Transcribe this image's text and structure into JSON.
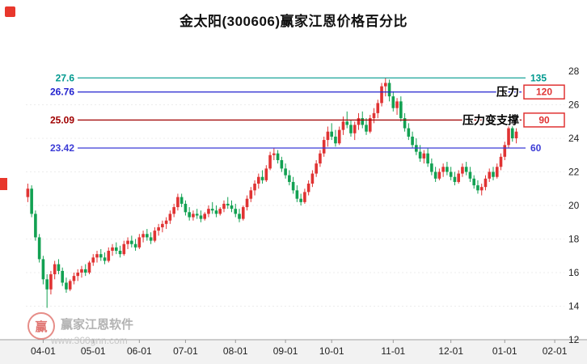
{
  "title": "金太阳(300606)赢家江恩价格百分比",
  "watermark": {
    "logo_text": "赢",
    "name": "赢家江恩软件",
    "url": "www.360gnn.com"
  },
  "chart_data": {
    "type": "candlestick",
    "title": "金太阳(300606)赢家江恩价格百分比",
    "ylim": [
      12,
      28
    ],
    "y_ticks": [
      28,
      26,
      24,
      22,
      20,
      18,
      16,
      14,
      12
    ],
    "grid_values": [
      14,
      16,
      18,
      20,
      22,
      24,
      26
    ],
    "total_slots": 140,
    "up_color": "#e03333",
    "down_color": "#12a152",
    "box_color": "#e03333",
    "axis_color": "#999999",
    "x_ticks": [
      {
        "label": "04-01",
        "i": 4
      },
      {
        "label": "05-01",
        "i": 17
      },
      {
        "label": "06-01",
        "i": 29
      },
      {
        "label": "07-01",
        "i": 41
      },
      {
        "label": "08-01",
        "i": 54
      },
      {
        "label": "09-01",
        "i": 67
      },
      {
        "label": "10-01",
        "i": 79
      },
      {
        "label": "11-01",
        "i": 95
      },
      {
        "label": "12-01",
        "i": 110
      },
      {
        "label": "01-01",
        "i": 124
      },
      {
        "label": "02-01",
        "i": 137
      }
    ],
    "levels": [
      {
        "value": 27.6,
        "left_label": "27.6",
        "right_label": "135",
        "color": "#00998f",
        "right_style": "text"
      },
      {
        "value": 26.76,
        "left_label": "26.76",
        "right_label": "120",
        "color": "#2323cf",
        "right_style": "box",
        "annotation": "压力"
      },
      {
        "value": 25.09,
        "left_label": "25.09",
        "right_label": "90",
        "color": "#a00000",
        "right_style": "box",
        "annotation": "压力变支撑"
      },
      {
        "value": 23.42,
        "left_label": "23.42",
        "right_label": "60",
        "color": "#3b3bd6",
        "right_style": "text"
      }
    ],
    "candles": [
      [
        20.5,
        21.3,
        20.2,
        21.0
      ],
      [
        21.0,
        21.2,
        19.3,
        19.5
      ],
      [
        19.5,
        19.7,
        17.9,
        18.1
      ],
      [
        18.1,
        18.3,
        16.6,
        16.8
      ],
      [
        16.8,
        17.0,
        15.3,
        15.6
      ],
      [
        15.6,
        15.9,
        13.9,
        15.0
      ],
      [
        15.0,
        16.1,
        14.7,
        15.9
      ],
      [
        15.9,
        16.7,
        15.6,
        16.5
      ],
      [
        16.5,
        16.8,
        15.9,
        16.1
      ],
      [
        16.1,
        16.3,
        15.2,
        15.4
      ],
      [
        15.4,
        15.7,
        14.8,
        15.0
      ],
      [
        15.0,
        15.6,
        14.9,
        15.5
      ],
      [
        15.5,
        16.0,
        15.3,
        15.8
      ],
      [
        15.8,
        16.2,
        15.5,
        16.0
      ],
      [
        16.0,
        16.4,
        15.7,
        16.2
      ],
      [
        16.2,
        16.5,
        15.8,
        16.0
      ],
      [
        16.0,
        16.7,
        15.9,
        16.6
      ],
      [
        16.6,
        17.1,
        16.4,
        16.9
      ],
      [
        16.9,
        17.3,
        16.6,
        17.1
      ],
      [
        17.1,
        17.4,
        16.7,
        16.9
      ],
      [
        16.9,
        17.2,
        16.5,
        16.7
      ],
      [
        16.7,
        17.5,
        16.6,
        17.3
      ],
      [
        17.3,
        17.7,
        17.0,
        17.5
      ],
      [
        17.5,
        17.8,
        17.1,
        17.3
      ],
      [
        17.3,
        17.6,
        16.9,
        17.1
      ],
      [
        17.1,
        17.9,
        17.0,
        17.7
      ],
      [
        17.7,
        18.1,
        17.4,
        17.9
      ],
      [
        17.9,
        18.2,
        17.5,
        17.7
      ],
      [
        17.7,
        18.0,
        17.3,
        17.5
      ],
      [
        17.5,
        18.3,
        17.4,
        18.1
      ],
      [
        18.1,
        18.5,
        17.8,
        18.3
      ],
      [
        18.3,
        18.6,
        17.9,
        18.1
      ],
      [
        18.1,
        18.4,
        17.7,
        17.9
      ],
      [
        17.9,
        18.7,
        17.8,
        18.5
      ],
      [
        18.5,
        18.9,
        18.2,
        18.7
      ],
      [
        18.7,
        19.1,
        18.4,
        18.9
      ],
      [
        18.9,
        19.3,
        18.6,
        19.1
      ],
      [
        19.1,
        19.7,
        18.9,
        19.5
      ],
      [
        19.5,
        20.1,
        19.3,
        19.9
      ],
      [
        19.9,
        20.7,
        19.7,
        20.5
      ],
      [
        20.5,
        20.7,
        19.9,
        20.1
      ],
      [
        20.1,
        20.3,
        19.4,
        19.6
      ],
      [
        19.6,
        19.9,
        19.1,
        19.3
      ],
      [
        19.3,
        19.7,
        19.1,
        19.5
      ],
      [
        19.5,
        19.8,
        19.2,
        19.4
      ],
      [
        19.4,
        19.7,
        19.0,
        19.2
      ],
      [
        19.2,
        19.6,
        19.1,
        19.5
      ],
      [
        19.5,
        20.0,
        19.3,
        19.8
      ],
      [
        19.8,
        20.2,
        19.5,
        19.7
      ],
      [
        19.7,
        20.0,
        19.3,
        19.5
      ],
      [
        19.5,
        19.9,
        19.4,
        19.8
      ],
      [
        19.8,
        20.3,
        19.6,
        20.1
      ],
      [
        20.1,
        20.5,
        19.8,
        20.0
      ],
      [
        20.0,
        20.3,
        19.6,
        19.8
      ],
      [
        19.8,
        20.1,
        19.3,
        19.5
      ],
      [
        19.5,
        19.8,
        19.0,
        19.2
      ],
      [
        19.2,
        20.0,
        19.1,
        19.9
      ],
      [
        19.9,
        20.6,
        19.7,
        20.4
      ],
      [
        20.4,
        21.1,
        20.2,
        20.9
      ],
      [
        20.9,
        21.5,
        20.6,
        21.3
      ],
      [
        21.3,
        21.9,
        21.0,
        21.7
      ],
      [
        21.7,
        22.1,
        21.3,
        21.5
      ],
      [
        21.5,
        22.4,
        21.4,
        22.2
      ],
      [
        22.2,
        23.2,
        22.1,
        23.0
      ],
      [
        23.0,
        23.4,
        22.7,
        23.1
      ],
      [
        23.1,
        23.3,
        22.5,
        22.7
      ],
      [
        22.7,
        22.9,
        22.0,
        22.2
      ],
      [
        22.2,
        22.5,
        21.6,
        21.8
      ],
      [
        21.8,
        22.1,
        21.2,
        21.4
      ],
      [
        21.4,
        21.7,
        20.7,
        20.9
      ],
      [
        20.9,
        21.2,
        20.2,
        20.4
      ],
      [
        20.4,
        20.7,
        20.0,
        20.2
      ],
      [
        20.2,
        21.0,
        20.1,
        20.8
      ],
      [
        20.8,
        21.5,
        20.6,
        21.3
      ],
      [
        21.3,
        22.1,
        21.1,
        21.9
      ],
      [
        21.9,
        22.7,
        21.7,
        22.5
      ],
      [
        22.5,
        23.3,
        22.3,
        23.1
      ],
      [
        23.1,
        24.1,
        22.9,
        23.9
      ],
      [
        23.9,
        24.7,
        23.5,
        24.4
      ],
      [
        24.4,
        24.9,
        23.9,
        24.1
      ],
      [
        24.1,
        24.5,
        23.5,
        23.7
      ],
      [
        23.7,
        24.7,
        23.6,
        24.5
      ],
      [
        24.5,
        25.3,
        24.2,
        25.0
      ],
      [
        25.0,
        25.6,
        24.6,
        24.8
      ],
      [
        24.8,
        25.1,
        24.1,
        24.3
      ],
      [
        24.3,
        25.0,
        23.9,
        24.8
      ],
      [
        24.8,
        25.5,
        24.5,
        25.2
      ],
      [
        25.2,
        25.6,
        24.6,
        24.8
      ],
      [
        24.8,
        25.2,
        24.2,
        24.4
      ],
      [
        24.4,
        25.4,
        24.3,
        25.2
      ],
      [
        25.2,
        25.8,
        24.9,
        25.5
      ],
      [
        25.5,
        26.3,
        25.2,
        26.1
      ],
      [
        26.1,
        27.3,
        25.9,
        27.1
      ],
      [
        27.1,
        27.6,
        26.5,
        27.3
      ],
      [
        27.3,
        27.5,
        26.2,
        26.5
      ],
      [
        26.5,
        26.8,
        25.6,
        25.8
      ],
      [
        25.8,
        26.4,
        25.4,
        26.2
      ],
      [
        26.2,
        26.5,
        25.0,
        25.2
      ],
      [
        25.2,
        25.5,
        24.4,
        24.6
      ],
      [
        24.6,
        24.9,
        23.9,
        24.1
      ],
      [
        24.1,
        24.4,
        23.4,
        23.6
      ],
      [
        23.6,
        24.0,
        23.0,
        23.2
      ],
      [
        23.2,
        23.6,
        22.6,
        22.8
      ],
      [
        22.8,
        23.3,
        22.5,
        23.1
      ],
      [
        23.1,
        23.4,
        22.3,
        22.5
      ],
      [
        22.5,
        22.8,
        21.8,
        22.0
      ],
      [
        22.0,
        22.3,
        21.4,
        21.6
      ],
      [
        21.6,
        22.2,
        21.5,
        22.0
      ],
      [
        22.0,
        22.5,
        21.7,
        22.3
      ],
      [
        22.3,
        22.6,
        21.8,
        22.0
      ],
      [
        22.0,
        22.3,
        21.5,
        21.7
      ],
      [
        21.7,
        22.0,
        21.2,
        21.4
      ],
      [
        21.4,
        22.1,
        21.3,
        21.9
      ],
      [
        21.9,
        22.5,
        21.7,
        22.3
      ],
      [
        22.3,
        22.6,
        21.8,
        22.0
      ],
      [
        22.0,
        22.3,
        21.4,
        21.6
      ],
      [
        21.6,
        21.8,
        21.0,
        21.2
      ],
      [
        21.2,
        21.5,
        20.7,
        20.9
      ],
      [
        20.9,
        21.3,
        20.6,
        21.1
      ],
      [
        21.1,
        21.8,
        20.9,
        21.6
      ],
      [
        21.6,
        22.2,
        21.4,
        22.0
      ],
      [
        22.0,
        22.3,
        21.5,
        21.7
      ],
      [
        21.7,
        22.5,
        21.6,
        22.3
      ],
      [
        22.3,
        23.1,
        22.1,
        22.9
      ],
      [
        22.9,
        23.8,
        22.7,
        23.6
      ],
      [
        23.6,
        24.9,
        23.4,
        24.6
      ],
      [
        24.6,
        25.0,
        23.8,
        24.0
      ],
      [
        24.0,
        24.6,
        23.7,
        24.4
      ]
    ]
  }
}
